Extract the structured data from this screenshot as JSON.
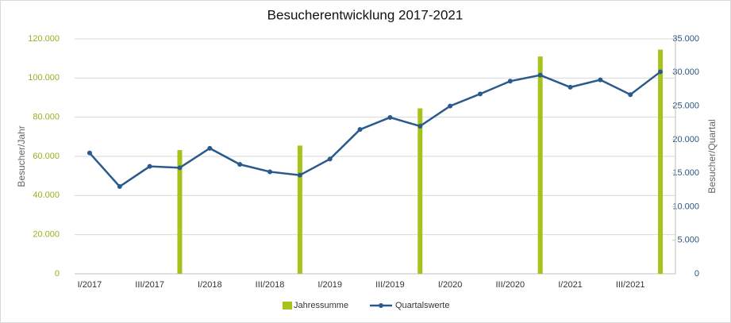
{
  "chart_data": {
    "type": "combo",
    "title": "Besucherentwicklung 2017-2021",
    "y_label": "Besucher/Jahr",
    "y2_label": "Besucher/Quartal",
    "categories": [
      "I/2017",
      null,
      "III/2017",
      null,
      "I/2018",
      null,
      "III/2018",
      null,
      "I/2019",
      null,
      "III/2019",
      null,
      "I/2020",
      null,
      "III/2020",
      null,
      "I/2021",
      null,
      "III/2021",
      null
    ],
    "series": [
      {
        "name": "Jahressumme",
        "type": "bar",
        "axis": "y",
        "color": "#a5c31b",
        "values": [
          null,
          null,
          null,
          63200,
          null,
          null,
          null,
          65500,
          null,
          null,
          null,
          84500,
          null,
          null,
          null,
          111000,
          null,
          null,
          null,
          114500
        ]
      },
      {
        "name": "Quartalswerte",
        "type": "line",
        "axis": "y2",
        "color": "#2a5a8c",
        "values": [
          18000,
          13000,
          16000,
          15800,
          18700,
          16300,
          15200,
          14700,
          17100,
          21500,
          23300,
          22000,
          25000,
          26800,
          28700,
          29600,
          27800,
          28900,
          26700,
          30100
        ]
      }
    ],
    "ylim": [
      0,
      120000
    ],
    "yticks": [
      0,
      {
        "value": 20000,
        "label": "20.000"
      },
      {
        "value": 40000,
        "label": "40.000"
      },
      {
        "value": 60000,
        "label": "60.000"
      },
      {
        "value": 80000,
        "label": "80.000"
      },
      {
        "value": 100000,
        "label": "100.000"
      },
      {
        "value": 120000,
        "label": "120.000"
      }
    ],
    "y2lim": [
      0,
      35000
    ],
    "y2ticks": [
      0,
      {
        "value": 5000,
        "label": "5.000"
      },
      {
        "value": 10000,
        "label": "10.000"
      },
      {
        "value": 15000,
        "label": "15.000"
      },
      {
        "value": 20000,
        "label": "20.000"
      },
      {
        "value": 25000,
        "label": "25.000"
      },
      {
        "value": 30000,
        "label": "30.000"
      },
      {
        "value": 35000,
        "label": "35.000"
      }
    ],
    "grid": true,
    "legend": "bottom"
  }
}
